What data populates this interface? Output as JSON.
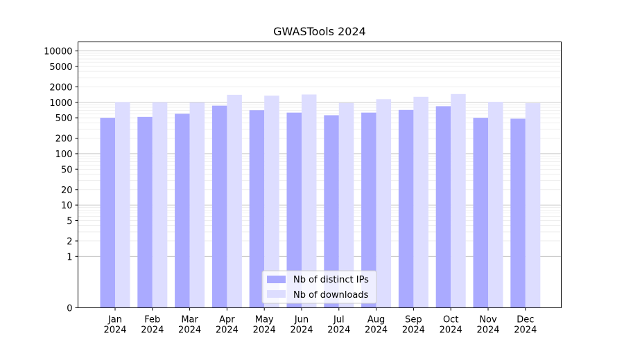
{
  "chart_data": {
    "type": "bar",
    "title": "GWASTools 2024",
    "xlabel": "",
    "ylabel": "",
    "yscale": "symlog",
    "ylim": [
      0,
      15000
    ],
    "yticks": [
      0,
      1,
      2,
      5,
      10,
      20,
      50,
      100,
      200,
      500,
      1000,
      2000,
      5000,
      10000
    ],
    "grid": "horizontal",
    "legend_position": "bottom-center",
    "categories": [
      "Jan\n2024",
      "Feb\n2024",
      "Mar\n2024",
      "Apr\n2024",
      "May\n2024",
      "Jun\n2024",
      "Jul\n2024",
      "Aug\n2024",
      "Sep\n2024",
      "Oct\n2024",
      "Nov\n2024",
      "Dec\n2024"
    ],
    "series": [
      {
        "name": "Nb of distinct IPs",
        "color": "#aaaaff",
        "values": [
          500,
          520,
          600,
          860,
          700,
          630,
          560,
          630,
          710,
          840,
          500,
          480
        ]
      },
      {
        "name": "Nb of downloads",
        "color": "#ddddff",
        "values": [
          1010,
          1000,
          990,
          1400,
          1350,
          1420,
          970,
          1150,
          1280,
          1450,
          1020,
          960
        ]
      }
    ]
  }
}
